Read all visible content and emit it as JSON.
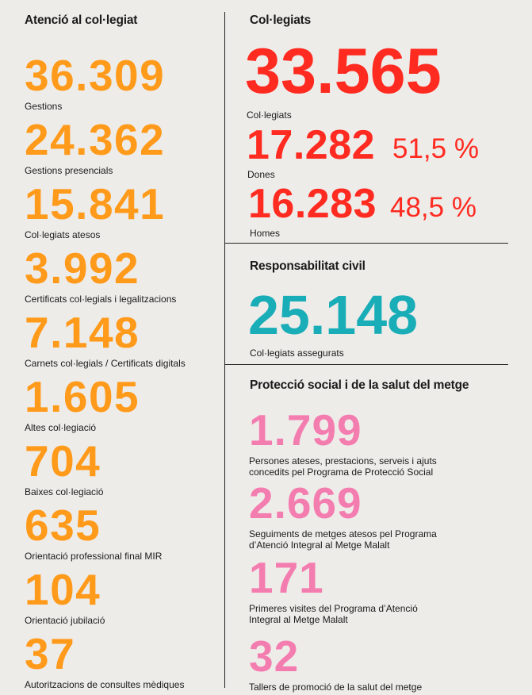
{
  "left": {
    "title": "Atenció al col·legiat",
    "items": [
      {
        "value": "36.309",
        "label": "Gestions"
      },
      {
        "value": "24.362",
        "label": "Gestions presencials"
      },
      {
        "value": "15.841",
        "label": "Col·legiats atesos"
      },
      {
        "value": "3.992",
        "label": "Certificats col·legials i legalitzacions"
      },
      {
        "value": "7.148",
        "label": "Carnets col·legials / Certificats digitals"
      },
      {
        "value": "1.605",
        "label": "Altes col·legiació"
      },
      {
        "value": "704",
        "label": "Baixes col·legiació"
      },
      {
        "value": "635",
        "label": "Orientació professional final MIR"
      },
      {
        "value": "104",
        "label": "Orientació jubilació"
      },
      {
        "value": "37",
        "label": "Autoritzacions de consultes mèdiques"
      }
    ]
  },
  "colegiats": {
    "title": "Col·legiats",
    "total": "33.565",
    "total_label": "Col·legiats",
    "women": {
      "value": "17.282",
      "pct": "51,5 %",
      "label": "Dones"
    },
    "men": {
      "value": "16.283",
      "pct": "48,5 %",
      "label": "Homes"
    }
  },
  "resp": {
    "title": "Responsabilitat civil",
    "value": "25.148",
    "label": "Col·legiats assegurats"
  },
  "social": {
    "title": "Protecció social i de la salut del metge",
    "items": [
      {
        "value": "1.799",
        "label1": "Persones ateses, prestacions, serveis i ajuts",
        "label2": "concedits pel Programa de Protecció Social"
      },
      {
        "value": "2.669",
        "label1": "Seguiments de metges atesos pel Programa",
        "label2": "d’Atenció Integral al Metge Malalt"
      },
      {
        "value": "171",
        "label1": "Primeres visites del Programa d’Atenció",
        "label2": "Integral al Metge Malalt"
      },
      {
        "value": "32",
        "label1": "Tallers de promoció de la salut del metge",
        "label2": ""
      }
    ]
  },
  "colors": {
    "orange": "#ff9a1a",
    "red": "#ff2a20",
    "teal": "#19adb8",
    "pink": "#f47db0"
  }
}
